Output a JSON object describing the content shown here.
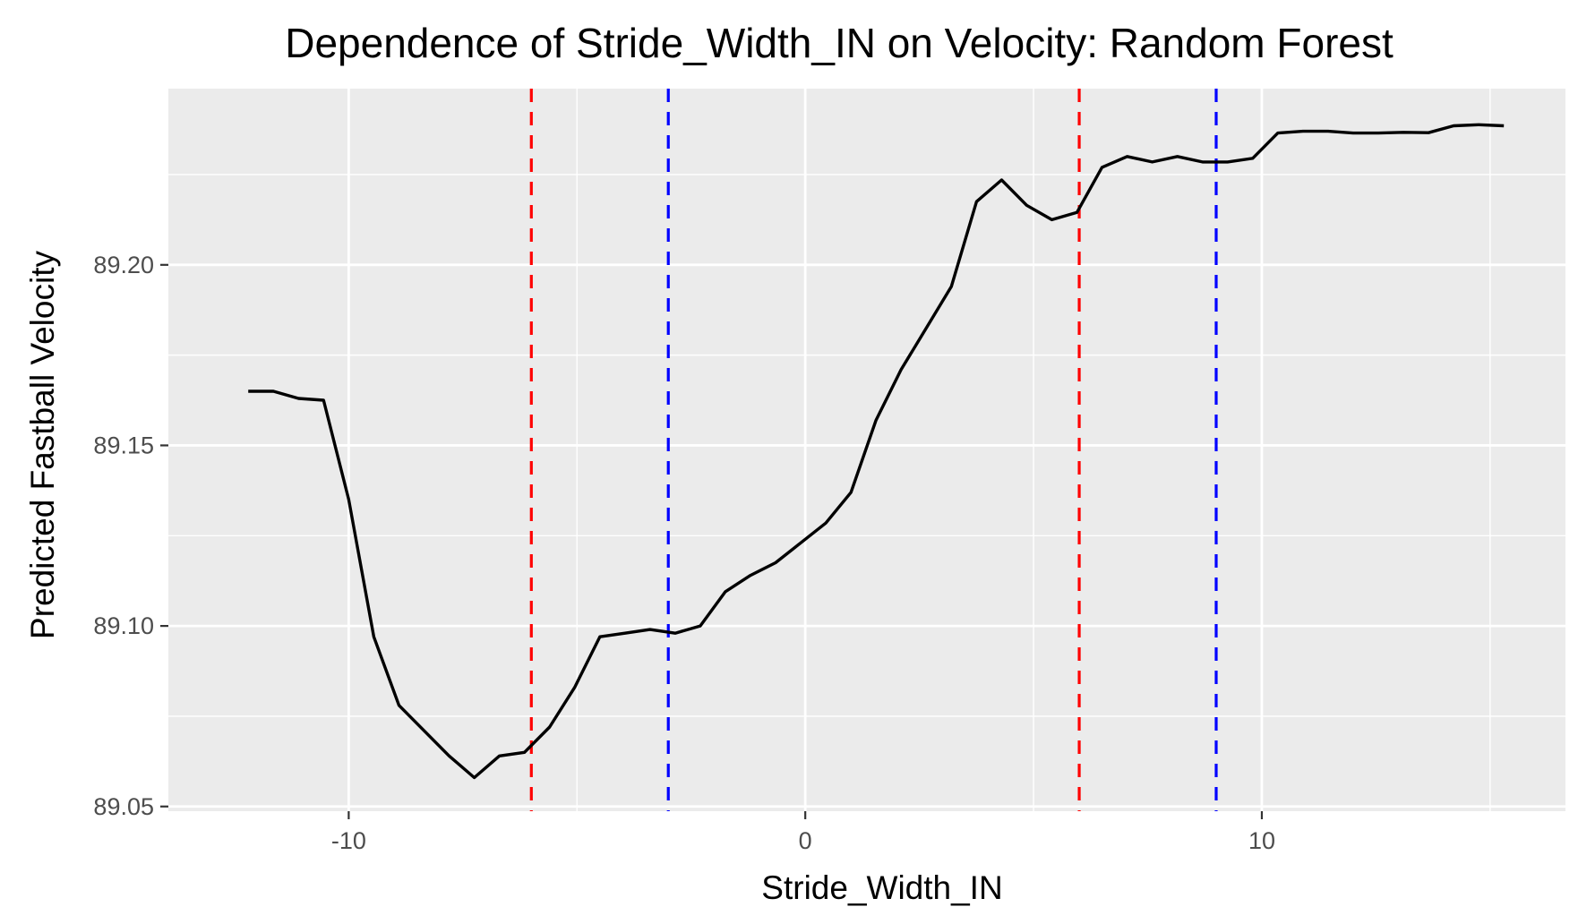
{
  "chart_data": {
    "type": "line",
    "title": "Dependence of Stride_Width_IN on Velocity: Random Forest",
    "xlabel": "Stride_Width_IN",
    "ylabel": "Predicted Fastball Velocity",
    "xlim": [
      -13.95,
      16.65
    ],
    "ylim": [
      89.0487,
      89.2488
    ],
    "x_ticks": [
      -10,
      0,
      10
    ],
    "x_tick_labels": [
      "-10",
      "0",
      "10"
    ],
    "y_ticks": [
      89.05,
      89.1,
      89.15,
      89.2
    ],
    "y_tick_labels": [
      "89.05",
      "89.10",
      "89.15",
      "89.20"
    ],
    "grid": true,
    "background": "#ebebeb",
    "line_color": "#000000",
    "series": [
      {
        "x": [
          -12.2,
          -11.65,
          -11.1,
          -10.55,
          -10.0,
          -9.45,
          -8.9,
          -8.35,
          -7.8,
          -7.25,
          -6.7,
          -6.15,
          -5.6,
          -5.05,
          -4.5,
          -3.95,
          -3.4,
          -2.85,
          -2.3,
          -1.75,
          -1.2,
          -0.65,
          -0.1,
          0.45,
          1.0,
          1.55,
          2.1,
          2.65,
          3.2,
          3.75,
          4.3,
          4.85,
          5.4,
          5.95,
          6.5,
          7.05,
          7.6,
          8.15,
          8.7,
          9.25,
          9.8,
          10.35,
          10.9,
          11.45,
          12.0,
          12.55,
          13.1,
          13.65,
          14.2,
          14.75,
          15.3
        ],
        "y": [
          89.165,
          89.165,
          89.163,
          89.1625,
          89.135,
          89.097,
          89.078,
          89.071,
          89.064,
          89.058,
          89.064,
          89.065,
          89.072,
          89.083,
          89.097,
          89.098,
          89.099,
          89.098,
          89.1,
          89.1095,
          89.114,
          89.1175,
          89.123,
          89.1285,
          89.137,
          89.157,
          89.171,
          89.1825,
          89.194,
          89.2175,
          89.2235,
          89.2165,
          89.2125,
          89.2145,
          89.227,
          89.23,
          89.2285,
          89.23,
          89.2285,
          89.2285,
          89.2295,
          89.2365,
          89.237,
          89.237,
          89.2365,
          89.2365,
          89.2367,
          89.2366,
          89.2385,
          89.2388,
          89.2385
        ]
      }
    ],
    "reference_lines": [
      {
        "x": -6.0,
        "color": "#ff0000",
        "style": "dashed"
      },
      {
        "x": -3.0,
        "color": "#0000ff",
        "style": "dashed"
      },
      {
        "x": 6.0,
        "color": "#ff0000",
        "style": "dashed"
      },
      {
        "x": 9.0,
        "color": "#0000ff",
        "style": "dashed"
      }
    ]
  }
}
